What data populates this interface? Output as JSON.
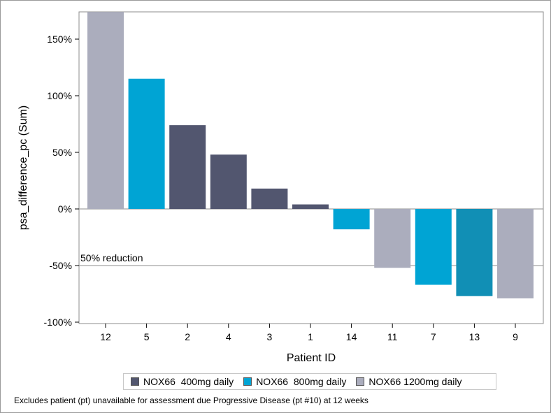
{
  "chart_data": {
    "type": "bar",
    "xlabel": "Patient ID",
    "ylabel": "psa_difference_pc (Sum)",
    "ylim": [
      -100,
      175
    ],
    "yticks": [
      -100,
      -50,
      0,
      50,
      100,
      150
    ],
    "ytick_labels": [
      "-100%",
      "-50%",
      "0%",
      "50%",
      "100%",
      "150%"
    ],
    "reference_line": {
      "value": -50,
      "label": "50% reduction"
    },
    "categories": [
      "12",
      "5",
      "2",
      "4",
      "3",
      "1",
      "14",
      "11",
      "7",
      "13",
      "9"
    ],
    "values": [
      174,
      115,
      74,
      48,
      18,
      4,
      -18,
      -52,
      -67,
      -77,
      -79
    ],
    "groups": [
      "NOX66 1200mg daily",
      "NOX66  800mg daily",
      "NOX66  400mg daily",
      "NOX66  400mg daily",
      "NOX66  400mg daily",
      "NOX66  400mg daily",
      "NOX66  800mg daily",
      "NOX66 1200mg daily",
      "NOX66  800mg daily",
      "NOX66  800mg daily",
      "NOX66 1200mg daily"
    ],
    "bar_colors": [
      "#abadbd",
      "#00a4d4",
      "#52566f",
      "#52566f",
      "#52566f",
      "#52566f",
      "#00a4d4",
      "#abadbd",
      "#00a4d4",
      "#118fb5",
      "#abadbd"
    ],
    "legend": [
      {
        "label": "NOX66  400mg daily",
        "color": "#52566f"
      },
      {
        "label": "NOX66  800mg daily",
        "color": "#00a4d4"
      },
      {
        "label": "NOX66 1200mg daily",
        "color": "#abadbd"
      }
    ],
    "footnote": "Excludes patient (pt) unavailable for assessment due Progressive Disease (pt #10) at 12 weeks"
  }
}
